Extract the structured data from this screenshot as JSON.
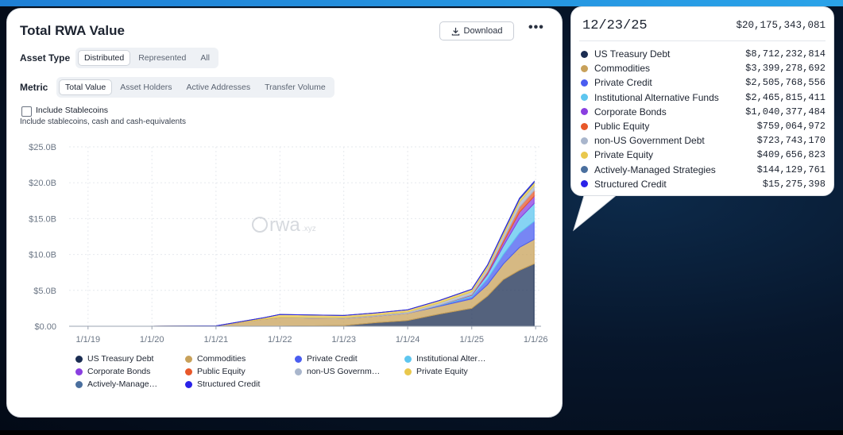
{
  "title": "Total RWA Value",
  "download_label": "Download",
  "more_label": "•••",
  "asset_type": {
    "label": "Asset Type",
    "options": [
      "Distributed",
      "Represented",
      "All"
    ],
    "selected": "Distributed"
  },
  "metric": {
    "label": "Metric",
    "options": [
      "Total Value",
      "Asset Holders",
      "Active Addresses",
      "Transfer Volume"
    ],
    "selected": "Total Value"
  },
  "stablecoins": {
    "label": "Include Stablecoins",
    "sublabel": "Include stablecoins, cash and cash-equivalents",
    "checked": false
  },
  "watermark": "rwa",
  "watermark_suffix": ".xyz",
  "legend": [
    {
      "name": "US Treasury Debt",
      "color": "#1b2d52"
    },
    {
      "name": "Commodities",
      "color": "#c8a15a"
    },
    {
      "name": "Private Credit",
      "color": "#4a5df0"
    },
    {
      "name": "Institutional Alter…",
      "color": "#5ec6ef"
    },
    {
      "name": "Corporate Bonds",
      "color": "#8a3fe0"
    },
    {
      "name": "Public Equity",
      "color": "#e8582a"
    },
    {
      "name": "non-US Governm…",
      "color": "#a9b6cc"
    },
    {
      "name": "Private Equity",
      "color": "#e9c84d"
    },
    {
      "name": "Actively-Manage…",
      "color": "#4a6f9e"
    },
    {
      "name": "Structured Credit",
      "color": "#2a22e8"
    }
  ],
  "tooltip": {
    "date": "12/23/25",
    "total": "$20,175,343,081",
    "rows": [
      {
        "name": "US Treasury Debt",
        "value": "$8,712,232,814",
        "color": "#1b2d52"
      },
      {
        "name": "Commodities",
        "value": "$3,399,278,692",
        "color": "#c8a15a"
      },
      {
        "name": "Private Credit",
        "value": "$2,505,768,556",
        "color": "#4a5df0"
      },
      {
        "name": "Institutional Alternative Funds",
        "value": "$2,465,815,411",
        "color": "#5ec6ef"
      },
      {
        "name": "Corporate Bonds",
        "value": "$1,040,377,484",
        "color": "#8a3fe0"
      },
      {
        "name": "Public Equity",
        "value": "$759,064,972",
        "color": "#e8582a"
      },
      {
        "name": "non-US Government Debt",
        "value": "$723,743,170",
        "color": "#a9b6cc"
      },
      {
        "name": "Private Equity",
        "value": "$409,656,823",
        "color": "#e9c84d"
      },
      {
        "name": "Actively-Managed Strategies",
        "value": "$144,129,761",
        "color": "#4a6f9e"
      },
      {
        "name": "Structured Credit",
        "value": "$15,275,398",
        "color": "#2a22e8"
      }
    ]
  },
  "chart_data": {
    "type": "area",
    "stacked": true,
    "title": "Total RWA Value",
    "ylim": [
      0,
      25
    ],
    "y_ticks": [
      "$0.00",
      "$5.0B",
      "$10.0B",
      "$15.0B",
      "$20.0B",
      "$25.0B"
    ],
    "x_ticks": [
      "1/1/19",
      "1/1/20",
      "1/1/21",
      "1/1/22",
      "1/1/23",
      "1/1/24",
      "1/1/25",
      "1/1/26"
    ],
    "x": [
      "2019-01-01",
      "2020-01-01",
      "2021-01-01",
      "2021-10-01",
      "2022-01-01",
      "2023-01-01",
      "2023-07-01",
      "2024-01-01",
      "2024-07-01",
      "2025-01-01",
      "2025-04-01",
      "2025-07-01",
      "2025-10-01",
      "2025-12-23"
    ],
    "series": [
      {
        "name": "US Treasury Debt",
        "color": "#1b2d52",
        "values": [
          0,
          0,
          0,
          0,
          0,
          0.1,
          0.5,
          0.8,
          1.7,
          2.5,
          4.2,
          6.5,
          7.8,
          8.7
        ]
      },
      {
        "name": "Commodities",
        "color": "#c8a15a",
        "values": [
          0,
          0,
          0.05,
          1.0,
          1.2,
          1.0,
          0.9,
          1.0,
          1.1,
          1.3,
          1.6,
          2.2,
          3.2,
          3.4
        ]
      },
      {
        "name": "Private Credit",
        "color": "#4a5df0",
        "values": [
          0,
          0,
          0,
          0,
          0,
          0,
          0,
          0,
          0.1,
          0.3,
          0.8,
          1.3,
          2.0,
          2.5
        ]
      },
      {
        "name": "Institutional Alternative Funds",
        "color": "#5ec6ef",
        "values": [
          0,
          0,
          0,
          0,
          0,
          0,
          0,
          0,
          0.05,
          0.2,
          0.6,
          1.2,
          2.0,
          2.5
        ]
      },
      {
        "name": "Corporate Bonds",
        "color": "#8a3fe0",
        "values": [
          0,
          0,
          0,
          0,
          0,
          0,
          0,
          0,
          0,
          0.05,
          0.2,
          0.5,
          0.9,
          1.0
        ]
      },
      {
        "name": "Public Equity",
        "color": "#e8582a",
        "values": [
          0,
          0,
          0,
          0,
          0,
          0,
          0,
          0,
          0,
          0.05,
          0.2,
          0.4,
          0.7,
          0.8
        ]
      },
      {
        "name": "non-US Government Debt",
        "color": "#a9b6cc",
        "values": [
          0,
          0,
          0,
          0,
          0.05,
          0.1,
          0.15,
          0.2,
          0.3,
          0.4,
          0.5,
          0.6,
          0.7,
          0.7
        ]
      },
      {
        "name": "Private Equity",
        "color": "#e9c84d",
        "values": [
          0,
          0,
          0,
          0.2,
          0.4,
          0.3,
          0.3,
          0.3,
          0.35,
          0.35,
          0.38,
          0.4,
          0.4,
          0.4
        ]
      },
      {
        "name": "Actively-Managed Strategies",
        "color": "#4a6f9e",
        "values": [
          0,
          0,
          0,
          0,
          0,
          0,
          0,
          0,
          0,
          0.02,
          0.05,
          0.1,
          0.13,
          0.14
        ]
      },
      {
        "name": "Structured Credit",
        "color": "#2a22e8",
        "values": [
          0,
          0,
          0,
          0,
          0,
          0,
          0,
          0,
          0,
          0,
          0.005,
          0.01,
          0.015,
          0.015
        ]
      }
    ]
  }
}
